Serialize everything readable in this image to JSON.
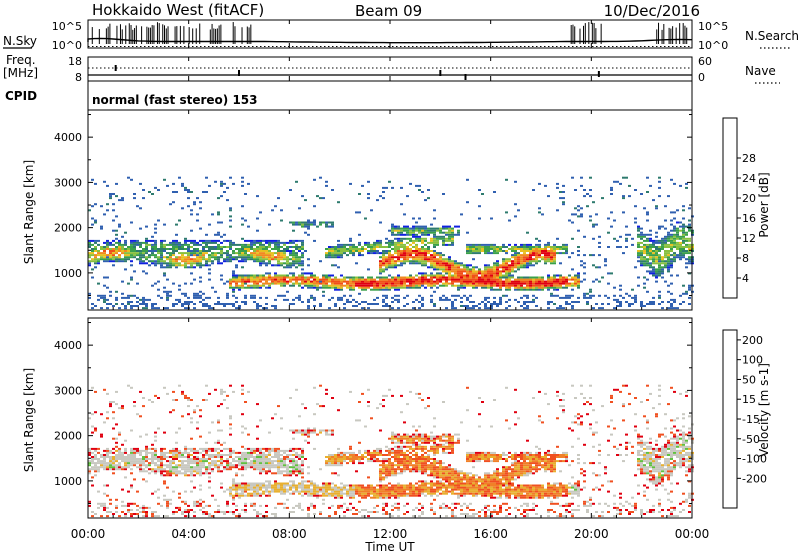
{
  "header": {
    "title": "Hokkaido West (fitACF)",
    "beam": "Beam 09",
    "date": "10/Dec/2016"
  },
  "status_panels": {
    "nsky_label": "N.Sky",
    "nsearch_label": "N.Search",
    "freq_label_1": "Freq.",
    "freq_label_2": "[MHz]",
    "nave_label": "Nave",
    "cpid_label": "CPID",
    "cpid_text": "normal (fast stereo) 153",
    "noise_ticks": [
      "10^5",
      "10^0"
    ],
    "freq_ticks": [
      "18",
      "8"
    ],
    "nave_ticks": [
      "60",
      "0"
    ]
  },
  "chart_data": [
    {
      "type": "heatmap",
      "quantity": "power",
      "ylabel": "Slant Range [km]",
      "ylim": [
        180,
        4600
      ],
      "yticks": [
        "1000",
        "2000",
        "3000",
        "4000"
      ],
      "xlim_hours": [
        0,
        24
      ],
      "colorbar": {
        "label": "Power [dB]",
        "ticks": [
          "4",
          "8",
          "12",
          "16",
          "20",
          "24",
          "28"
        ],
        "colors": [
          "#1020e0",
          "#3060b0",
          "#2e7b6e",
          "#3aa04a",
          "#88c040",
          "#e8c020",
          "#f08a20",
          "#f05018",
          "#e00010"
        ]
      }
    },
    {
      "type": "heatmap",
      "quantity": "velocity",
      "ylabel": "Slant Range [km]",
      "ylim": [
        180,
        4600
      ],
      "yticks": [
        "1000",
        "2000",
        "3000",
        "4000"
      ],
      "xlim_hours": [
        0,
        24
      ],
      "colorbar": {
        "label": "Velocity [m s-1]",
        "ticks": [
          "200",
          "100",
          "50",
          "15",
          "-15",
          "-50",
          "-100",
          "-200"
        ],
        "colors": [
          "#2030b0",
          "#3070c0",
          "#40a0a0",
          "#60c040",
          "#c8c8c0",
          "#e8b030",
          "#f08028",
          "#f05020",
          "#e00010"
        ]
      }
    }
  ],
  "x_axis": {
    "xlabel": "Time UT",
    "ticks": [
      "00:00",
      "04:00",
      "08:00",
      "12:00",
      "16:00",
      "20:00",
      "00:00"
    ]
  }
}
